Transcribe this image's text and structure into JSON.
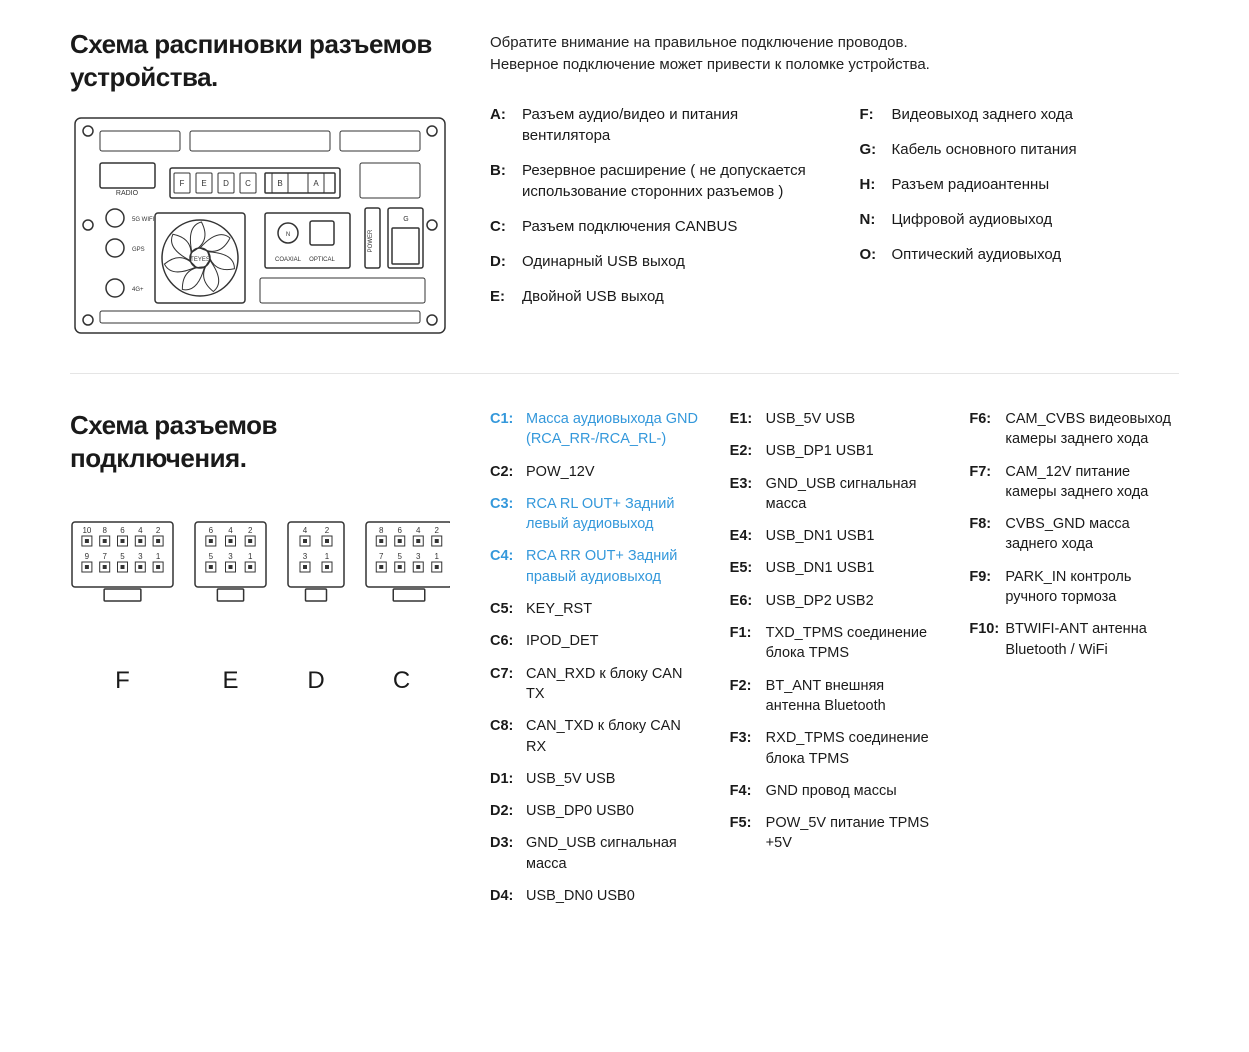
{
  "section1": {
    "title": "Схема распиновки разъемов устройства.",
    "noteLine1": "Обратите внимание на правильное подключение проводов.",
    "noteLine2": "Неверное подключение может привести к поломке устройства.",
    "diagram": {
      "labels": {
        "radio": "RADIO",
        "wifi5g": "5G WIFI",
        "gps": "GPS",
        "g4": "4G+",
        "teyes": "TEYES",
        "coaxial": "COAXIAL",
        "optical": "OPTICAL",
        "power": "POWER",
        "slots": [
          "F",
          "E",
          "D",
          "C",
          "B",
          "A"
        ],
        "n": "N",
        "g": "G"
      },
      "stroke": "#333333"
    },
    "legendLeft": [
      {
        "k": "A:",
        "v": "Разъем аудио/видео и питания вентилятора"
      },
      {
        "k": "B:",
        "v": "Резервное расширение ( не допускается использование сторонних разъемов )"
      },
      {
        "k": "C:",
        "v": "Разъем подключения CANBUS"
      },
      {
        "k": "D:",
        "v": "Одинарный USB выход"
      },
      {
        "k": "E:",
        "v": "Двойной USB выход"
      }
    ],
    "legendRight": [
      {
        "k": "F:",
        "v": "Видеовыход заднего хода"
      },
      {
        "k": "G:",
        "v": "Кабель основного питания"
      },
      {
        "k": "H:",
        "v": "Разъем радиоантенны"
      },
      {
        "k": "N:",
        "v": "Цифровой аудиовыход"
      },
      {
        "k": "O:",
        "v": "Оптический аудиовыход"
      }
    ]
  },
  "section2": {
    "title": "Схема разъемов подключения.",
    "connectors": [
      {
        "label": "F",
        "pinsTop": [
          "10",
          "8",
          "6",
          "4",
          "2"
        ],
        "pinsBot": [
          "9",
          "7",
          "5",
          "3",
          "1"
        ]
      },
      {
        "label": "E",
        "pinsTop": [
          "6",
          "4",
          "2"
        ],
        "pinsBot": [
          "5",
          "3",
          "1"
        ]
      },
      {
        "label": "D",
        "pinsTop": [
          "4",
          "2"
        ],
        "pinsBot": [
          "3",
          "1"
        ]
      },
      {
        "label": "C",
        "pinsTop": [
          "8",
          "6",
          "4",
          "2"
        ],
        "pinsBot": [
          "7",
          "5",
          "3",
          "1"
        ]
      }
    ],
    "col1": [
      {
        "k": "C1:",
        "v": "Масса аудиовыхода GND (RCA_RR-/RCA_RL-)",
        "hl": true
      },
      {
        "k": "C2:",
        "v": "POW_12V"
      },
      {
        "k": "C3:",
        "v": "RCA RL OUT+ Задний левый аудиовыход",
        "hl": true
      },
      {
        "k": "C4:",
        "v": "RCA RR OUT+ Задний правый аудиовыход",
        "hl": true
      },
      {
        "k": "C5:",
        "v": "KEY_RST"
      },
      {
        "k": "C6:",
        "v": "IPOD_DET"
      },
      {
        "k": "C7:",
        "v": "CAN_RXD к блоку CAN TX"
      },
      {
        "k": "C8:",
        "v": "CAN_TXD к блоку CAN RX"
      },
      {
        "k": "D1:",
        "v": "USB_5V USB"
      },
      {
        "k": "D2:",
        "v": "USB_DP0 USB0"
      },
      {
        "k": "D3:",
        "v": "GND_USB сигнальная масса"
      },
      {
        "k": "D4:",
        "v": "USB_DN0 USB0"
      }
    ],
    "col2": [
      {
        "k": "E1:",
        "v": "USB_5V USB"
      },
      {
        "k": "E2:",
        "v": "USB_DP1 USB1"
      },
      {
        "k": "E3:",
        "v": "GND_USB сигнальная масса"
      },
      {
        "k": "E4:",
        "v": "USB_DN1 USB1"
      },
      {
        "k": "E5:",
        "v": "USB_DN1 USB1"
      },
      {
        "k": "E6:",
        "v": "USB_DP2 USB2"
      },
      {
        "k": "F1:",
        "v": "TXD_TPMS соединение блока TPMS"
      },
      {
        "k": "F2:",
        "v": "BT_ANT внешняя антенна Bluetooth"
      },
      {
        "k": "F3:",
        "v": "RXD_TPMS соединение блока TPMS"
      },
      {
        "k": "F4:",
        "v": "GND провод массы"
      },
      {
        "k": "F5:",
        "v": "POW_5V питание TPMS +5V"
      }
    ],
    "col3": [
      {
        "k": "F6:",
        "v": "CAM_CVBS видеовыход камеры заднего хода"
      },
      {
        "k": "F7:",
        "v": "CAM_12V питание камеры заднего хода"
      },
      {
        "k": "F8:",
        "v": "CVBS_GND масса заднего хода"
      },
      {
        "k": "F9:",
        "v": "PARK_IN контроль ручного тормоза"
      },
      {
        "k": "F10:",
        "v": "BTWIFI-ANT антенна Bluetooth / WiFi"
      }
    ]
  },
  "colors": {
    "text": "#1a1a1a",
    "highlight": "#3498db",
    "divider": "#e5e5e5",
    "background": "#ffffff",
    "stroke": "#333333"
  },
  "typography": {
    "title_fontsize": 26,
    "body_fontsize": 15,
    "pin_fontsize": 14.5,
    "conn_label_fontsize": 24
  }
}
